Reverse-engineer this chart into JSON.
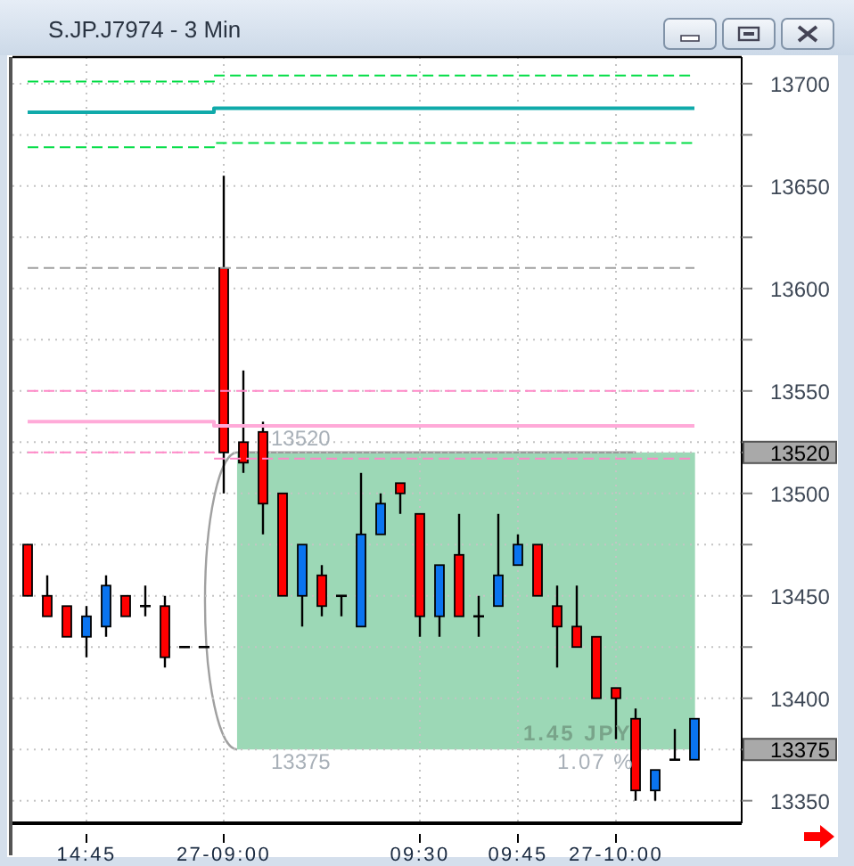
{
  "chart_data": {
    "type": "candlestick",
    "title": "S.JP.J7974 - 3 Min",
    "categories": [
      null,
      null,
      null,
      "14:45",
      null,
      null,
      null,
      null,
      null,
      null,
      "27-09:00",
      null,
      null,
      null,
      null,
      null,
      null,
      null,
      null,
      null,
      "09:30",
      null,
      null,
      null,
      null,
      "09:45",
      null,
      null,
      null,
      null,
      "27-10:00",
      null,
      null,
      null,
      null
    ],
    "ohlc": [
      [
        13475,
        13475,
        13450,
        13450
      ],
      [
        13450,
        13460,
        13440,
        13440
      ],
      [
        13445,
        13445,
        13430,
        13430
      ],
      [
        13430,
        13445,
        13420,
        13440
      ],
      [
        13435,
        13460,
        13430,
        13455
      ],
      [
        13450,
        13450,
        13440,
        13440
      ],
      [
        13445,
        13455,
        13440,
        13445
      ],
      [
        13445,
        13450,
        13415,
        13420
      ],
      [
        13425,
        13425,
        13425,
        13425
      ],
      [
        13425,
        13425,
        13425,
        13425
      ],
      [
        13610,
        13655,
        13500,
        13520
      ],
      [
        13525,
        13560,
        13510,
        13515
      ],
      [
        13530,
        13535,
        13480,
        13495
      ],
      [
        13500,
        13500,
        13450,
        13450
      ],
      [
        13450,
        13475,
        13435,
        13475
      ],
      [
        13460,
        13465,
        13440,
        13445
      ],
      [
        13450,
        13450,
        13440,
        13450
      ],
      [
        13435,
        13510,
        13435,
        13480
      ],
      [
        13480,
        13500,
        13480,
        13495
      ],
      [
        13505,
        13505,
        13490,
        13500
      ],
      [
        13490,
        13490,
        13430,
        13440
      ],
      [
        13440,
        13465,
        13430,
        13465
      ],
      [
        13470,
        13490,
        13440,
        13440
      ],
      [
        13440,
        13450,
        13430,
        13440
      ],
      [
        13445,
        13490,
        13445,
        13460
      ],
      [
        13465,
        13480,
        13465,
        13475
      ],
      [
        13475,
        13475,
        13450,
        13450
      ],
      [
        13445,
        13455,
        13415,
        13435
      ],
      [
        13435,
        13455,
        13425,
        13425
      ],
      [
        13430,
        13430,
        13400,
        13400
      ],
      [
        13405,
        13405,
        13380,
        13400
      ],
      [
        13390,
        13395,
        13350,
        13355
      ],
      [
        13355,
        13365,
        13350,
        13365
      ],
      [
        13370,
        13385,
        13370,
        13370
      ],
      [
        13370,
        13390,
        13370,
        13390
      ]
    ],
    "colors": [
      "#ff0000",
      "#ff0000",
      "#ff0000",
      "#0a74f0",
      "#0a74f0",
      "#ff0000",
      "#000000",
      "#ff0000",
      "#000000",
      "#000000",
      "#ff0000",
      "#ff0000",
      "#ff0000",
      "#ff0000",
      "#0a74f0",
      "#ff0000",
      "#000000",
      "#0a74f0",
      "#0a74f0",
      "#ff0000",
      "#ff0000",
      "#0a74f0",
      "#ff0000",
      "#000000",
      "#0a74f0",
      "#0a74f0",
      "#ff0000",
      "#ff0000",
      "#ff0000",
      "#ff0000",
      "#ff0000",
      "#ff0000",
      "#0a74f0",
      "#000000",
      "#0a74f0"
    ],
    "series": [
      {
        "type": "step",
        "color": "#00dd44",
        "line_style": "dashed",
        "values": [
          13701,
          13701,
          13701,
          13701,
          13701,
          13701,
          13701,
          13701,
          13701,
          13701,
          13704,
          13704,
          13704,
          13704,
          13704,
          13704,
          13704,
          13704,
          13704,
          13704,
          13704,
          13704,
          13704,
          13704,
          13704,
          13704,
          13704,
          13704,
          13704,
          13704,
          13704,
          13704,
          13704,
          13704,
          13704
        ]
      },
      {
        "type": "step",
        "color": "#10aaaa",
        "line_style": "solid",
        "values": [
          13686,
          13686,
          13686,
          13686,
          13686,
          13686,
          13686,
          13686,
          13686,
          13686,
          13688,
          13688,
          13688,
          13688,
          13688,
          13688,
          13688,
          13688,
          13688,
          13688,
          13688,
          13688,
          13688,
          13688,
          13688,
          13688,
          13688,
          13688,
          13688,
          13688,
          13688,
          13688,
          13688,
          13688,
          13688
        ]
      },
      {
        "type": "step",
        "color": "#00dd44",
        "line_style": "dashed",
        "values": [
          13669,
          13669,
          13669,
          13669,
          13669,
          13669,
          13669,
          13669,
          13669,
          13669,
          13671,
          13671,
          13671,
          13671,
          13671,
          13671,
          13671,
          13671,
          13671,
          13671,
          13671,
          13671,
          13671,
          13671,
          13671,
          13671,
          13671,
          13671,
          13671,
          13671,
          13671,
          13671,
          13671,
          13671,
          13671
        ]
      },
      {
        "type": "step",
        "color": "#a0a0a0",
        "line_style": "dashed",
        "values": [
          13610,
          13610,
          13610,
          13610,
          13610,
          13610,
          13610,
          13610,
          13610,
          13610,
          13610,
          13610,
          13610,
          13610,
          13610,
          13610,
          13610,
          13610,
          13610,
          13610,
          13610,
          13610,
          13610,
          13610,
          13610,
          13610,
          13610,
          13610,
          13610,
          13610,
          13610,
          13610,
          13610,
          13610,
          13610
        ]
      },
      {
        "type": "step",
        "color": "#ff88c8",
        "line_style": "dashed",
        "values": [
          13550,
          13550,
          13550,
          13550,
          13550,
          13550,
          13550,
          13550,
          13550,
          13550,
          13550,
          13550,
          13550,
          13550,
          13550,
          13550,
          13550,
          13550,
          13550,
          13550,
          13550,
          13550,
          13550,
          13550,
          13550,
          13550,
          13550,
          13550,
          13550,
          13550,
          13550,
          13550,
          13550,
          13550,
          13550
        ]
      },
      {
        "type": "step",
        "color": "#ffaad8",
        "line_style": "solid",
        "values": [
          13535,
          13535,
          13535,
          13535,
          13535,
          13535,
          13535,
          13535,
          13535,
          13535,
          13533,
          13533,
          13533,
          13533,
          13533,
          13533,
          13533,
          13533,
          13533,
          13533,
          13533,
          13533,
          13533,
          13533,
          13533,
          13533,
          13533,
          13533,
          13533,
          13533,
          13533,
          13533,
          13533,
          13533,
          13533
        ]
      },
      {
        "type": "step",
        "color": "#ff88c8",
        "line_style": "dashed",
        "values": [
          13520,
          13520,
          13520,
          13520,
          13520,
          13520,
          13520,
          13520,
          13520,
          13520,
          13517,
          13517,
          13517,
          13517,
          13517,
          13517,
          13517,
          13517,
          13517,
          13517,
          13517,
          13517,
          13517,
          13517,
          13517,
          13517,
          13517,
          13517,
          13517,
          13517,
          13517,
          13517,
          13517,
          13517,
          13517
        ]
      }
    ],
    "ylim": [
      13339,
      13713
    ],
    "yticks": [
      13350,
      {
        "value": 13375,
        "label": "13375"
      },
      13400,
      {
        "value": 13425,
        "label": null
      },
      13450,
      {
        "value": 13475,
        "label": null
      },
      13500,
      {
        "value": 13520,
        "label": "13520"
      },
      {
        "value": 13525,
        "label": null
      },
      13550,
      {
        "value": 13575,
        "label": null
      },
      13600,
      {
        "value": 13625,
        "label": null
      },
      13650,
      {
        "value": 13675,
        "label": null
      },
      13700
    ],
    "grid": true,
    "bands": [
      {
        "axis": "y",
        "from": 13375,
        "to": 13520,
        "label": "1.45 JPY",
        "color": "#9cd8b6"
      }
    ],
    "ref_lines": [
      {
        "axis": "y",
        "value": 13520,
        "color": "#9a9a9a"
      }
    ],
    "annotations": [
      {
        "text": "13520",
        "y": 13520
      },
      {
        "text": "13375",
        "y": 13375
      },
      "1.07 %"
    ]
  }
}
